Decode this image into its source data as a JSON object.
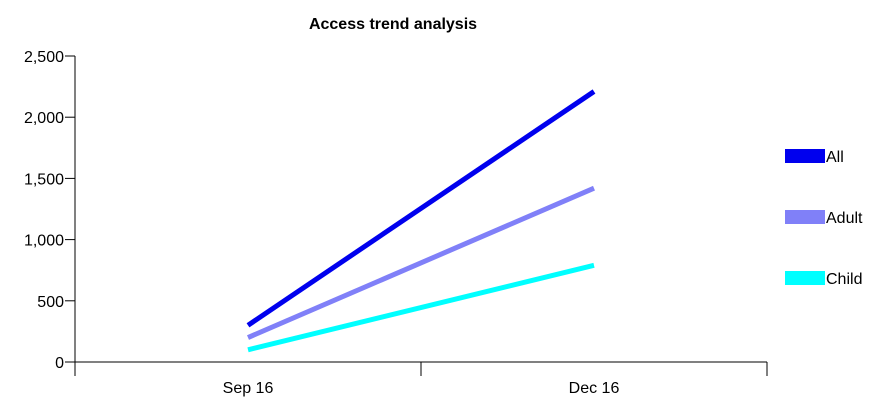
{
  "chart_data": {
    "type": "line",
    "title": "Access trend analysis",
    "xlabel": "",
    "ylabel": "",
    "categories": [
      "Sep 16",
      "Dec 16"
    ],
    "ylim": [
      0,
      2500
    ],
    "y_ticks": [
      0,
      500,
      1000,
      1500,
      2000,
      2500
    ],
    "y_tick_labels": [
      "0",
      "500",
      "1,000",
      "1,500",
      "2,000",
      "2,500"
    ],
    "grid": false,
    "legend_position": "right",
    "series": [
      {
        "name": "All",
        "values": [
          300,
          2210
        ],
        "color": "#0000ee"
      },
      {
        "name": "Adult",
        "values": [
          200,
          1420
        ],
        "color": "#8080f8"
      },
      {
        "name": "Child",
        "values": [
          100,
          790
        ],
        "color": "#00ffff"
      }
    ]
  }
}
